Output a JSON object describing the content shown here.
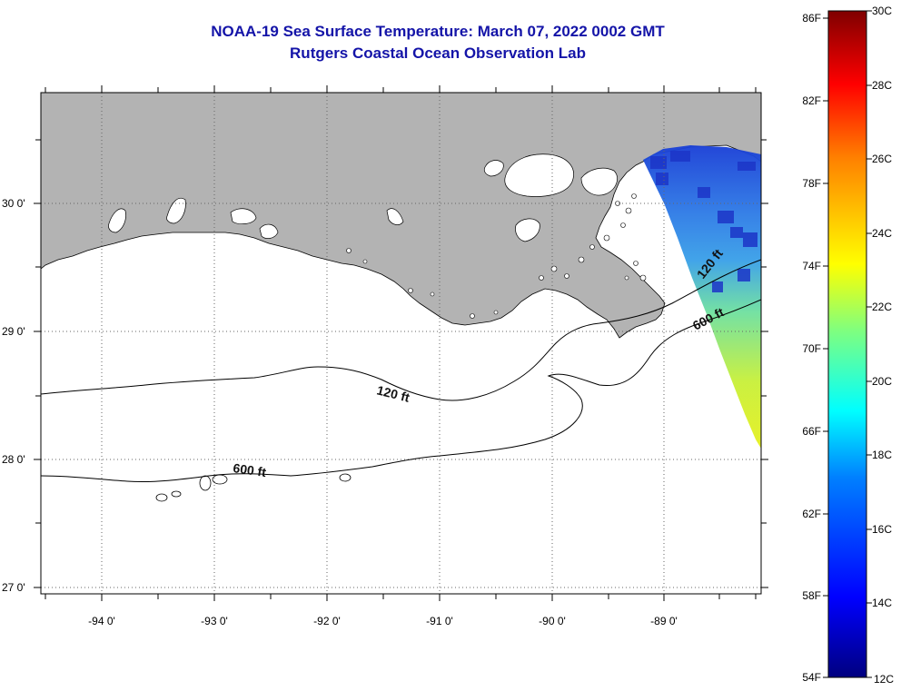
{
  "header": {
    "title": "NOAA-19 Sea Surface Temperature:  March 07, 2022 0002 GMT",
    "subtitle": "Rutgers Coastal Ocean Observation Lab"
  },
  "map": {
    "lon_labels": [
      "-94 0'",
      "-93 0'",
      "-92 0'",
      "-91 0'",
      "-90 0'",
      "-89 0'"
    ],
    "lat_labels": [
      "30 0'",
      "29 0'",
      "28 0'",
      "27 0'"
    ],
    "contour_labels": [
      "120 ft",
      "600 ft",
      "120 ft",
      "600 ft"
    ],
    "colors": {
      "land": "#b3b3b3",
      "water": "#ffffff",
      "title": "#1414a8"
    }
  },
  "colorbar": {
    "fahrenheit_labels": [
      "86F",
      "82F",
      "78F",
      "74F",
      "70F",
      "66F",
      "62F",
      "58F",
      "54F"
    ],
    "celsius_labels": [
      "30C",
      "28C",
      "26C",
      "24C",
      "22C",
      "20C",
      "18C",
      "16C",
      "14C",
      "12C"
    ],
    "range_c": [
      12,
      30
    ]
  }
}
